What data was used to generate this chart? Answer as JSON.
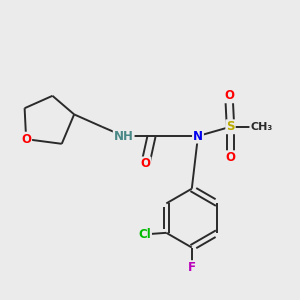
{
  "background_color": "#ebebeb",
  "bond_color": "#2a2a2a",
  "atom_colors": {
    "O": "#ff0000",
    "N": "#0000ee",
    "Cl": "#00bb00",
    "F": "#bb00bb",
    "S": "#bbaa00",
    "NH": "#4a8888",
    "C": "#2a2a2a"
  },
  "font_size": 8.5,
  "lw": 1.4
}
